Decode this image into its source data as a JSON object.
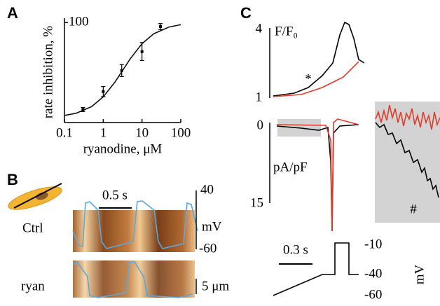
{
  "chart_data": {
    "type": "scatter",
    "panel_label": "A",
    "y_label": "rate inhibition, %",
    "x_label": "ryanodine, μM",
    "x": [
      0.3,
      1,
      3,
      10,
      30
    ],
    "values": [
      13,
      31,
      52,
      71,
      96
    ],
    "errors": [
      2,
      5,
      6,
      9,
      3
    ],
    "color": "#000000",
    "fit": {
      "x": [
        0.1,
        0.2,
        0.5,
        1,
        2,
        3,
        5,
        10,
        20,
        50,
        100
      ],
      "values": [
        7.1,
        9.3,
        15.9,
        25.7,
        40.4,
        50.8,
        63.9,
        78.9,
        88.8,
        95.6,
        97.9
      ]
    },
    "xlim": [
      0.1,
      100
    ],
    "ylim": [
      0,
      103
    ],
    "log_x": true,
    "xticks": [
      0.1,
      1,
      10,
      100
    ],
    "yticks": [
      100
    ]
  },
  "panel_b": {
    "label": "B",
    "scale_time": "0.5 s",
    "voltage_ticks": [
      "40",
      "-60"
    ],
    "voltage_unit": "mV",
    "rows": [
      "Ctrl",
      "ryan"
    ],
    "scale_space": "5 μm"
  },
  "panel_c": {
    "label": "C",
    "fluorescence_label": "F/F₀",
    "fluorescence_ticks": [
      "4",
      "1"
    ],
    "star": "*",
    "current_label": "pA/pF",
    "current_ticks": [
      "0",
      "15"
    ],
    "hash": "#",
    "scale_time": "0.3 s",
    "voltage_ticks": [
      "-10",
      "-40",
      "-60"
    ],
    "voltage_unit": "mV"
  }
}
